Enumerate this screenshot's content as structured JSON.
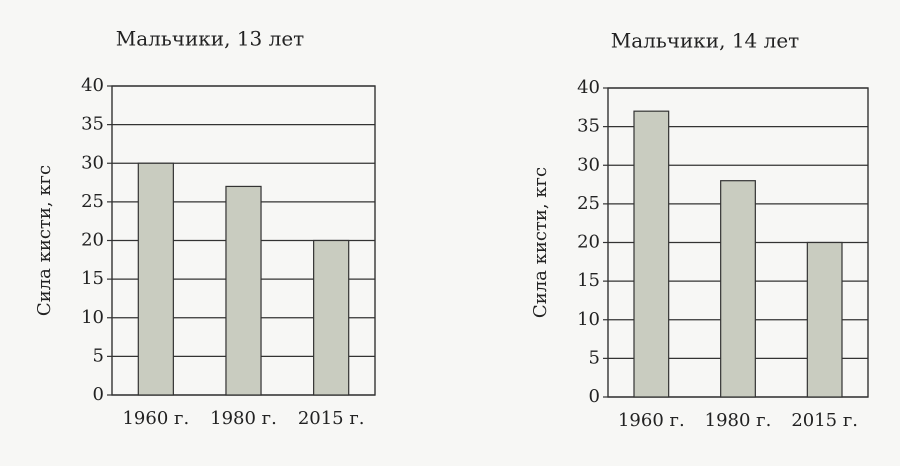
{
  "chart_data": [
    {
      "type": "bar",
      "title": "Мальчики, 13 лет",
      "y_label": "Сила кисти, кгс",
      "categories": [
        "1960 г.",
        "1980 г.",
        "2015 г."
      ],
      "values": [
        30,
        27,
        20
      ],
      "color": "#c9ccc0",
      "ylim": [
        0,
        40
      ],
      "yticks": [
        0,
        5,
        10,
        15,
        20,
        25,
        30,
        35,
        40
      ],
      "grid": true
    },
    {
      "type": "bar",
      "title": "Мальчики, 14 лет",
      "y_label": "Сила кисти, кгс",
      "categories": [
        "1960 г.",
        "1980 г.",
        "2015 г."
      ],
      "values": [
        37,
        28,
        20
      ],
      "color": "#c9ccc0",
      "ylim": [
        0,
        40
      ],
      "yticks": [
        0,
        5,
        10,
        15,
        20,
        25,
        30,
        35,
        40
      ],
      "grid": true
    }
  ]
}
